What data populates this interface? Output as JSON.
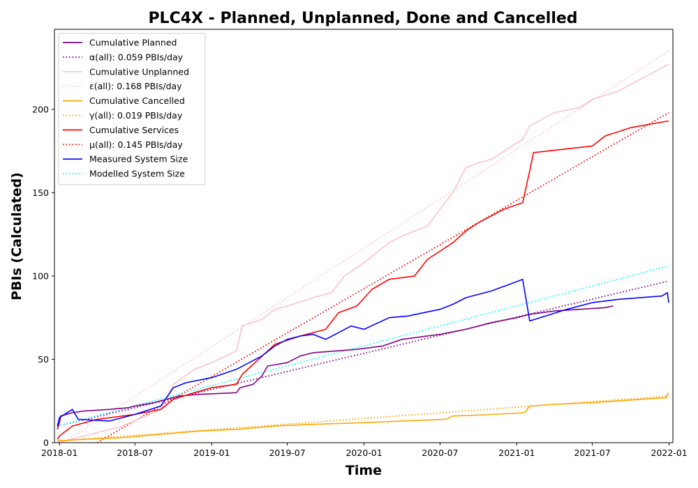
{
  "chart_data": {
    "type": "line",
    "title": "PLC4X - Planned, Unplanned, Done  and Cancelled",
    "xlabel": "Time",
    "ylabel": "PBIs (Calculated)",
    "xlim": [
      "2017-12-20",
      "2022-01-10"
    ],
    "ylim": [
      0,
      248
    ],
    "x_ticks": [
      {
        "date": "2018-01-01",
        "label": "2018-01"
      },
      {
        "date": "2018-07-01",
        "label": "2018-07"
      },
      {
        "date": "2019-01-01",
        "label": "2019-01"
      },
      {
        "date": "2019-07-01",
        "label": "2019-07"
      },
      {
        "date": "2020-01-01",
        "label": "2020-01"
      },
      {
        "date": "2020-07-01",
        "label": "2020-07"
      },
      {
        "date": "2021-01-01",
        "label": "2021-01"
      },
      {
        "date": "2021-07-01",
        "label": "2021-07"
      },
      {
        "date": "2022-01-01",
        "label": "2022-01"
      }
    ],
    "y_ticks": [
      0,
      50,
      100,
      150,
      200
    ],
    "grid": false,
    "legend_position": "top-left",
    "series": [
      {
        "name": "Cumulative Planned",
        "color": "#800080",
        "style": "solid",
        "points": [
          [
            "2017-12-27",
            8
          ],
          [
            "2018-01-01",
            12
          ],
          [
            "2018-01-04",
            16
          ],
          [
            "2018-02-01",
            18
          ],
          [
            "2018-03-01",
            19
          ],
          [
            "2018-05-01",
            20
          ],
          [
            "2018-06-15",
            21
          ],
          [
            "2018-07-01",
            22
          ],
          [
            "2018-08-15",
            24
          ],
          [
            "2018-09-15",
            26
          ],
          [
            "2018-10-15",
            28
          ],
          [
            "2018-12-01",
            29
          ],
          [
            "2019-03-01",
            30
          ],
          [
            "2019-03-10",
            33
          ],
          [
            "2019-04-10",
            35
          ],
          [
            "2019-05-01",
            40
          ],
          [
            "2019-05-15",
            46
          ],
          [
            "2019-07-01",
            48
          ],
          [
            "2019-08-01",
            52
          ],
          [
            "2019-09-01",
            54
          ],
          [
            "2019-12-15",
            56
          ],
          [
            "2020-02-15",
            58
          ],
          [
            "2020-04-01",
            62
          ],
          [
            "2020-07-01",
            65
          ],
          [
            "2020-09-01",
            68
          ],
          [
            "2020-11-01",
            72
          ],
          [
            "2021-01-01",
            75
          ],
          [
            "2021-02-01",
            77
          ],
          [
            "2021-04-01",
            79
          ],
          [
            "2021-06-01",
            80
          ],
          [
            "2021-08-01",
            81
          ],
          [
            "2021-08-20",
            82
          ]
        ]
      },
      {
        "name": "α(all): 0.059 PBIs/day",
        "color": "#800080",
        "style": "dotted",
        "points": [
          [
            "2017-12-27",
            10
          ],
          [
            "2021-12-31",
            97
          ]
        ]
      },
      {
        "name": "Cumulative Unplanned",
        "color": "#ffc0cb",
        "style": "solid",
        "points": [
          [
            "2017-12-27",
            0
          ],
          [
            "2018-03-01",
            4
          ],
          [
            "2018-06-01",
            10
          ],
          [
            "2018-09-01",
            20
          ],
          [
            "2018-10-01",
            35
          ],
          [
            "2018-11-20",
            44
          ],
          [
            "2019-01-01",
            48
          ],
          [
            "2019-03-01",
            55
          ],
          [
            "2019-03-15",
            70
          ],
          [
            "2019-05-01",
            74
          ],
          [
            "2019-06-01",
            80
          ],
          [
            "2019-07-01",
            82
          ],
          [
            "2019-09-01",
            87
          ],
          [
            "2019-10-15",
            90
          ],
          [
            "2019-11-15",
            100
          ],
          [
            "2020-01-01",
            108
          ],
          [
            "2020-03-01",
            120
          ],
          [
            "2020-04-01",
            124
          ],
          [
            "2020-06-01",
            130
          ],
          [
            "2020-07-01",
            140
          ],
          [
            "2020-08-01",
            150
          ],
          [
            "2020-09-01",
            165
          ],
          [
            "2020-10-01",
            168
          ],
          [
            "2020-11-01",
            170
          ],
          [
            "2020-12-01",
            175
          ],
          [
            "2021-01-15",
            182
          ],
          [
            "2021-02-01",
            190
          ],
          [
            "2021-04-01",
            198
          ],
          [
            "2021-06-01",
            201
          ],
          [
            "2021-07-01",
            206
          ],
          [
            "2021-09-01",
            211
          ],
          [
            "2021-11-01",
            219
          ],
          [
            "2021-12-31",
            227
          ]
        ]
      },
      {
        "name": "ε(all): 0.168 PBIs/day",
        "color": "#ffc0cb",
        "style": "dotted",
        "points": [
          [
            "2018-01-10",
            0
          ],
          [
            "2021-12-31",
            235
          ]
        ]
      },
      {
        "name": "Cumulative Cancelled",
        "color": "#ffa500",
        "style": "solid",
        "points": [
          [
            "2017-12-27",
            1
          ],
          [
            "2018-03-01",
            2
          ],
          [
            "2018-06-01",
            3
          ],
          [
            "2018-09-01",
            5
          ],
          [
            "2018-12-01",
            7
          ],
          [
            "2019-03-01",
            8
          ],
          [
            "2019-06-01",
            10
          ],
          [
            "2019-09-01",
            11
          ],
          [
            "2020-01-01",
            12
          ],
          [
            "2020-04-01",
            13
          ],
          [
            "2020-07-15",
            14
          ],
          [
            "2020-08-01",
            16
          ],
          [
            "2020-10-01",
            16.5
          ],
          [
            "2021-01-20",
            18
          ],
          [
            "2021-02-01",
            22
          ],
          [
            "2021-04-01",
            23
          ],
          [
            "2021-07-01",
            24
          ],
          [
            "2021-12-25",
            27
          ],
          [
            "2021-12-30",
            30
          ]
        ]
      },
      {
        "name": "γ(all): 0.019 PBIs/day",
        "color": "#ffa500",
        "style": "dotted",
        "points": [
          [
            "2017-12-27",
            1
          ],
          [
            "2021-12-31",
            28
          ]
        ]
      },
      {
        "name": "Cumulative Services",
        "color": "#ff0000",
        "style": "solid",
        "points": [
          [
            "2017-12-27",
            2
          ],
          [
            "2018-01-01",
            4
          ],
          [
            "2018-02-01",
            10
          ],
          [
            "2018-04-01",
            14
          ],
          [
            "2018-07-01",
            17
          ],
          [
            "2018-09-01",
            20
          ],
          [
            "2018-10-01",
            26
          ],
          [
            "2018-11-20",
            30
          ],
          [
            "2019-01-01",
            33
          ],
          [
            "2019-03-01",
            35
          ],
          [
            "2019-03-15",
            41
          ],
          [
            "2019-05-15",
            55
          ],
          [
            "2019-06-01",
            59
          ],
          [
            "2019-08-01",
            64
          ],
          [
            "2019-10-01",
            68
          ],
          [
            "2019-11-01",
            78
          ],
          [
            "2019-12-15",
            82
          ],
          [
            "2020-01-20",
            92
          ],
          [
            "2020-03-01",
            98
          ],
          [
            "2020-05-01",
            100
          ],
          [
            "2020-06-01",
            110
          ],
          [
            "2020-08-01",
            120
          ],
          [
            "2020-09-01",
            127
          ],
          [
            "2020-10-01",
            132
          ],
          [
            "2020-12-01",
            140
          ],
          [
            "2021-01-15",
            144
          ],
          [
            "2021-02-01",
            163
          ],
          [
            "2021-02-10",
            174
          ],
          [
            "2021-07-01",
            178
          ],
          [
            "2021-08-01",
            184
          ],
          [
            "2021-10-01",
            189
          ],
          [
            "2021-12-31",
            193
          ]
        ]
      },
      {
        "name": "μ(all): 0.145 PBIs/day",
        "color": "#ff0000",
        "style": "dotted",
        "points": [
          [
            "2018-04-01",
            0
          ],
          [
            "2021-12-31",
            198
          ]
        ]
      },
      {
        "name": "Measured System Size",
        "color": "#0000ff",
        "style": "solid",
        "points": [
          [
            "2017-12-27",
            10
          ],
          [
            "2018-01-01",
            15
          ],
          [
            "2018-02-01",
            20
          ],
          [
            "2018-02-15",
            14
          ],
          [
            "2018-05-01",
            13
          ],
          [
            "2018-07-01",
            17
          ],
          [
            "2018-09-01",
            22
          ],
          [
            "2018-10-01",
            33
          ],
          [
            "2018-11-01",
            36
          ],
          [
            "2019-01-01",
            39
          ],
          [
            "2019-03-01",
            44
          ],
          [
            "2019-05-01",
            52
          ],
          [
            "2019-06-01",
            58
          ],
          [
            "2019-07-01",
            62
          ],
          [
            "2019-08-01",
            64
          ],
          [
            "2019-09-01",
            65
          ],
          [
            "2019-10-01",
            62
          ],
          [
            "2019-12-01",
            70
          ],
          [
            "2020-01-01",
            68
          ],
          [
            "2020-03-01",
            75
          ],
          [
            "2020-04-15",
            76
          ],
          [
            "2020-07-01",
            80
          ],
          [
            "2020-08-01",
            83
          ],
          [
            "2020-09-01",
            87
          ],
          [
            "2020-11-01",
            91
          ],
          [
            "2020-12-15",
            95
          ],
          [
            "2021-01-15",
            98
          ],
          [
            "2021-02-01",
            73
          ],
          [
            "2021-05-01",
            80
          ],
          [
            "2021-07-01",
            84
          ],
          [
            "2021-09-01",
            86
          ],
          [
            "2021-12-15",
            88
          ],
          [
            "2021-12-28",
            90
          ],
          [
            "2021-12-31",
            84
          ]
        ]
      },
      {
        "name": "Modelled System Size",
        "color": "#00ffff",
        "style": "dotted",
        "points": [
          [
            "2017-12-27",
            10
          ],
          [
            "2021-12-31",
            106
          ]
        ]
      }
    ]
  }
}
